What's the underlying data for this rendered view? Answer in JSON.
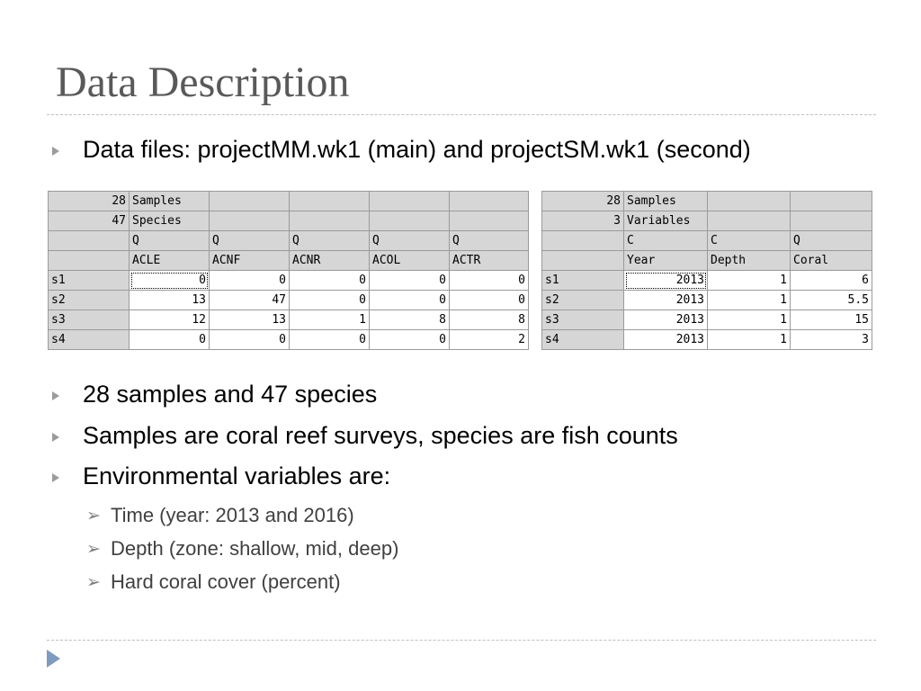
{
  "slide": {
    "title": "Data Description",
    "bullets": [
      "Data files: projectMM.wk1 (main) and projectSM.wk1 (second)",
      "28 samples and 47 species",
      "Samples are coral reef surveys, species are fish counts",
      "Environmental variables are:"
    ],
    "sub_bullets": [
      "Time (year: 2013 and 2016)",
      "Depth (zone: shallow, mid, deep)",
      "Hard coral cover (percent)"
    ]
  },
  "main_sheet": {
    "rows": [
      [
        "28",
        "Samples",
        "",
        "",
        "",
        ""
      ],
      [
        "47",
        "Species",
        "",
        "",
        "",
        ""
      ],
      [
        "",
        "Q",
        "Q",
        "Q",
        "Q",
        "Q"
      ],
      [
        "",
        "ACLE",
        "ACNF",
        "ACNR",
        "ACOL",
        "ACTR"
      ],
      [
        "s1",
        "0",
        "0",
        "0",
        "0",
        "0"
      ],
      [
        "s2",
        "13",
        "47",
        "0",
        "0",
        "0"
      ],
      [
        "s3",
        "12",
        "13",
        "1",
        "8",
        "8"
      ],
      [
        "s4",
        "0",
        "0",
        "0",
        "0",
        "2"
      ]
    ]
  },
  "second_sheet": {
    "rows": [
      [
        "28",
        "Samples",
        "",
        ""
      ],
      [
        "3",
        "Variables",
        "",
        ""
      ],
      [
        "",
        "C",
        "C",
        "Q"
      ],
      [
        "",
        "Year",
        "Depth",
        "Coral"
      ],
      [
        "s1",
        "2013",
        "1",
        "6"
      ],
      [
        "s2",
        "2013",
        "1",
        "5.5"
      ],
      [
        "s3",
        "2013",
        "1",
        "15"
      ],
      [
        "s4",
        "2013",
        "1",
        "3"
      ]
    ]
  },
  "icons": {
    "bullet": "triangle-bullet-icon",
    "sub_bullet": "arrow-bullet-icon",
    "nav": "play-icon"
  },
  "colors": {
    "title": "#595959",
    "bullet": "#9b9b9b",
    "header_cell": "#d6d6d6",
    "nav_icon": "#7f9bbf"
  }
}
